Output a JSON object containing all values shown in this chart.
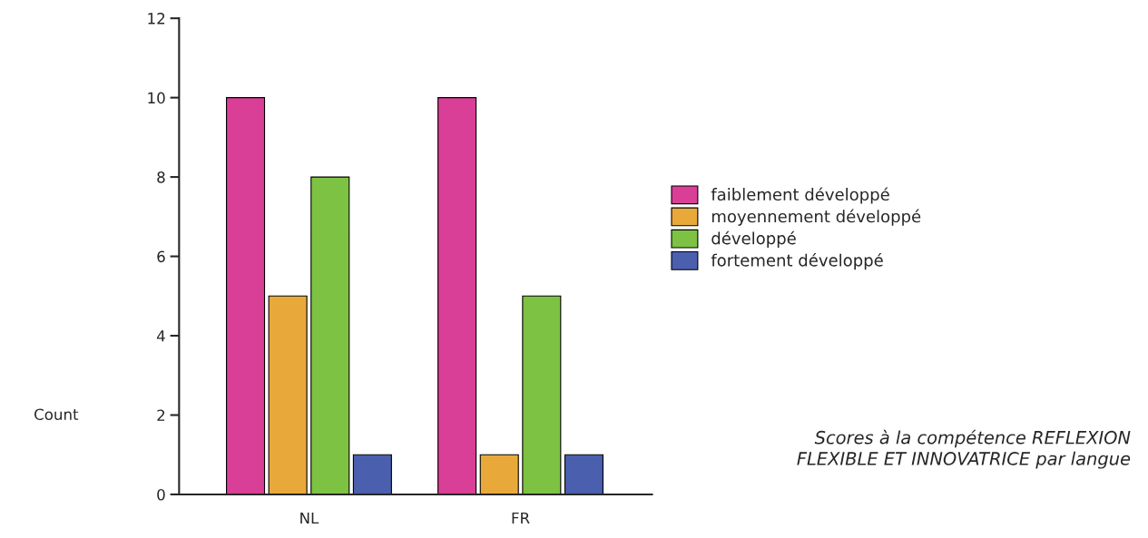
{
  "chart_data": {
    "type": "bar",
    "categories": [
      "NL",
      "FR"
    ],
    "series": [
      {
        "name": "faiblement développé",
        "color": "#d93f96",
        "values": [
          10,
          10
        ]
      },
      {
        "name": "moyennement développé",
        "color": "#e9a93a",
        "values": [
          5,
          1
        ]
      },
      {
        "name": "développé",
        "color": "#7dc242",
        "values": [
          8,
          5
        ]
      },
      {
        "name": "fortement développé",
        "color": "#4a5fad",
        "values": [
          1,
          1
        ]
      }
    ],
    "ylabel": "Count",
    "ylim": [
      0,
      12
    ],
    "yticks": [
      0,
      2,
      4,
      6,
      8,
      10,
      12
    ],
    "grid": false,
    "legend": "right",
    "annotations": [
      "Scores à la compétence REFLEXION\nFLEXIBLE ET INNOVATRICE par langue"
    ]
  }
}
